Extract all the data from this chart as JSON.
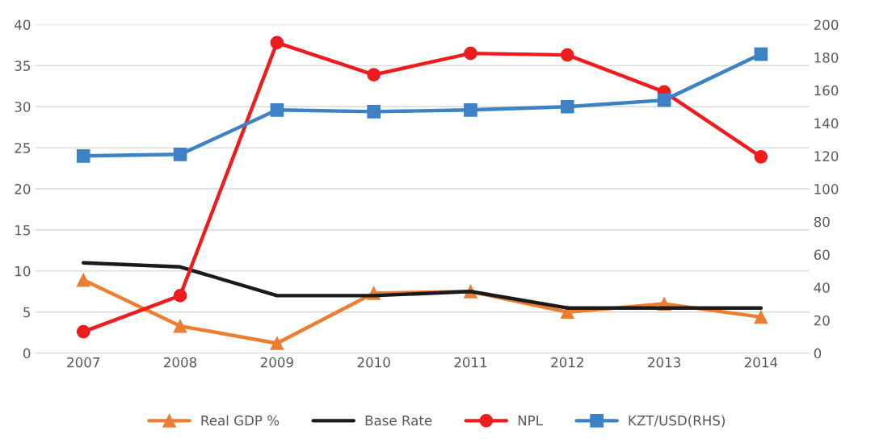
{
  "chart_data": {
    "type": "line",
    "categories": [
      "2007",
      "2008",
      "2009",
      "2010",
      "2011",
      "2012",
      "2013",
      "2014"
    ],
    "ylim": [
      0,
      40
    ],
    "yticks": [
      0,
      5,
      10,
      15,
      20,
      25,
      30,
      35,
      40
    ],
    "y2lim": [
      0,
      200
    ],
    "y2ticks": [
      0,
      20,
      40,
      60,
      80,
      100,
      120,
      140,
      160,
      180,
      200
    ],
    "grid": "y",
    "legend": "bottom",
    "series": [
      {
        "name": "Real GDP %",
        "color": "#ed7d31",
        "marker": "triangle",
        "values": [
          8.9,
          3.3,
          1.2,
          7.3,
          7.5,
          5.0,
          6.0,
          4.4
        ]
      },
      {
        "name": "Base Rate",
        "color": "#1a1a1a",
        "marker": "none",
        "values": [
          11.0,
          10.5,
          7.0,
          7.0,
          7.5,
          5.5,
          5.5,
          5.5
        ]
      },
      {
        "name": "NPL",
        "color": "#ee1c1c",
        "marker": "circle",
        "values": [
          2.6,
          7.0,
          37.8,
          33.9,
          36.5,
          36.3,
          31.8,
          23.9
        ]
      },
      {
        "name": "KZT/USD(RHS)",
        "color": "#3c82c4",
        "marker": "square",
        "axis": "y2",
        "values": [
          120,
          121,
          148,
          147,
          148,
          150,
          154,
          182
        ]
      }
    ]
  }
}
